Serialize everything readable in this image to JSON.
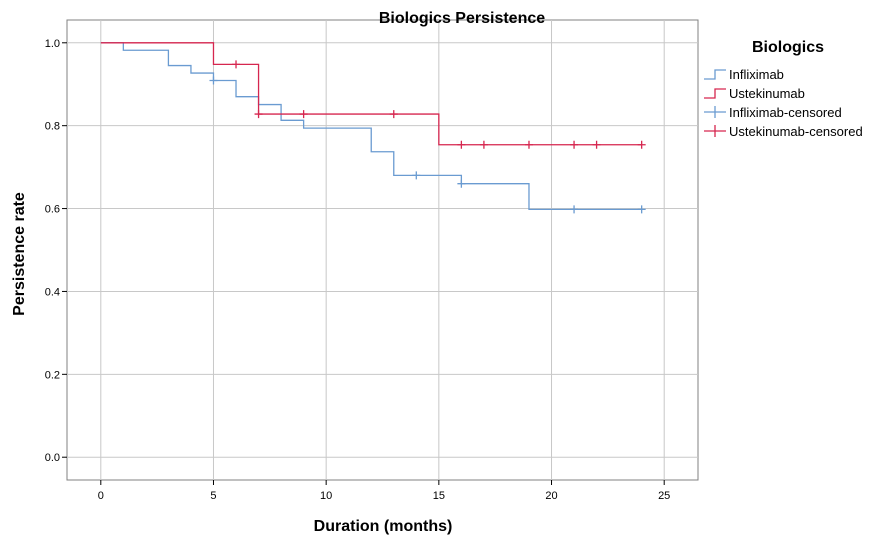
{
  "chart_data": {
    "type": "line",
    "title": "Biologics Persistence",
    "xlabel": "Duration (months)",
    "ylabel": "Persistence rate",
    "xlim": [
      -1.5,
      26.5
    ],
    "ylim": [
      -0.055,
      1.055
    ],
    "x_ticks": [
      0,
      5,
      10,
      15,
      20,
      25
    ],
    "y_ticks": [
      0.0,
      0.2,
      0.4,
      0.6,
      0.8,
      1.0
    ],
    "x_tick_labels": [
      "0",
      "5",
      "10",
      "15",
      "20",
      "25"
    ],
    "y_tick_labels": [
      "0.0",
      "0.2",
      "0.4",
      "0.6",
      "0.8",
      "1.0"
    ],
    "grid": true,
    "legend": {
      "title": "Biologics",
      "position": "right",
      "entries": [
        "Infliximab",
        "Ustekinumab",
        "Infliximab-censored",
        "Ustekinumab-censored"
      ]
    },
    "colors": {
      "infliximab": "#6a9bd1",
      "ustekinumab": "#d6264f",
      "grid": "#c8c8c8",
      "frame": "#808080"
    },
    "series": [
      {
        "name": "Infliximab",
        "step": true,
        "x": [
          0,
          1,
          3,
          4,
          5,
          6,
          7,
          8,
          9,
          12,
          13,
          16,
          19,
          24
        ],
        "y": [
          1.0,
          0.982,
          0.945,
          0.927,
          0.909,
          0.87,
          0.851,
          0.813,
          0.794,
          0.737,
          0.68,
          0.66,
          0.598,
          0.598
        ]
      },
      {
        "name": "Ustekinumab",
        "step": true,
        "x": [
          0,
          5,
          7,
          15,
          24
        ],
        "y": [
          1.0,
          0.948,
          0.828,
          0.754,
          0.754
        ]
      },
      {
        "name": "Infliximab-censored",
        "marker": "+",
        "x": [
          5,
          14,
          16,
          21,
          24
        ],
        "y": [
          0.909,
          0.68,
          0.66,
          0.598,
          0.598
        ]
      },
      {
        "name": "Ustekinumab-censored",
        "marker": "+",
        "x": [
          6,
          7,
          9,
          13,
          16,
          17,
          19,
          21,
          22,
          24
        ],
        "y": [
          0.948,
          0.828,
          0.828,
          0.828,
          0.754,
          0.754,
          0.754,
          0.754,
          0.754,
          0.754
        ]
      }
    ]
  }
}
